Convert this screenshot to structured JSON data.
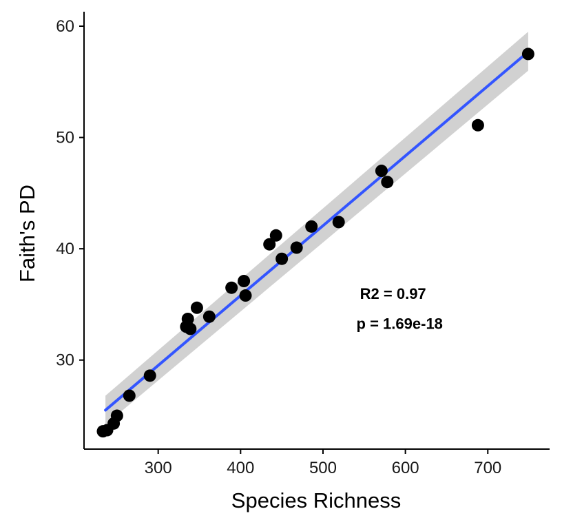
{
  "chart_data": {
    "type": "scatter",
    "title": "",
    "xlabel": "Species Richness",
    "ylabel": "Faith's PD",
    "xlim": [
      210,
      775
    ],
    "ylim": [
      22,
      61.3
    ],
    "x_ticks": [
      300,
      400,
      500,
      600,
      700
    ],
    "y_ticks": [
      30,
      40,
      50,
      60
    ],
    "grid": false,
    "colors": {
      "points": "#000000",
      "fit_line": "#3355ff",
      "confidence_band": "#cccccc"
    },
    "points": [
      {
        "x": 233,
        "y": 23.6
      },
      {
        "x": 238,
        "y": 23.7
      },
      {
        "x": 246,
        "y": 24.3
      },
      {
        "x": 250,
        "y": 25.0
      },
      {
        "x": 265,
        "y": 26.8
      },
      {
        "x": 290,
        "y": 28.6
      },
      {
        "x": 334,
        "y": 33.0
      },
      {
        "x": 336,
        "y": 33.7
      },
      {
        "x": 339,
        "y": 32.8
      },
      {
        "x": 347,
        "y": 34.7
      },
      {
        "x": 362,
        "y": 33.9
      },
      {
        "x": 389,
        "y": 36.5
      },
      {
        "x": 404,
        "y": 37.1
      },
      {
        "x": 406,
        "y": 35.8
      },
      {
        "x": 435,
        "y": 40.4
      },
      {
        "x": 443,
        "y": 41.2
      },
      {
        "x": 450,
        "y": 39.1
      },
      {
        "x": 468,
        "y": 40.1
      },
      {
        "x": 486,
        "y": 42.0
      },
      {
        "x": 519,
        "y": 42.4
      },
      {
        "x": 571,
        "y": 47.0
      },
      {
        "x": 578,
        "y": 46.0
      },
      {
        "x": 688,
        "y": 51.1
      },
      {
        "x": 749,
        "y": 57.5
      }
    ],
    "fit_line": {
      "x": [
        236,
        749
      ],
      "y": [
        25.5,
        57.7
      ],
      "band_lower": [
        24.2,
        56.0
      ],
      "band_upper": [
        26.8,
        59.5
      ]
    },
    "annotations": [
      {
        "text": "R2 = 0.97",
        "x": 585,
        "y": 36.0
      },
      {
        "text": "p = 1.69e-18",
        "x": 593,
        "y": 33.3
      }
    ]
  }
}
